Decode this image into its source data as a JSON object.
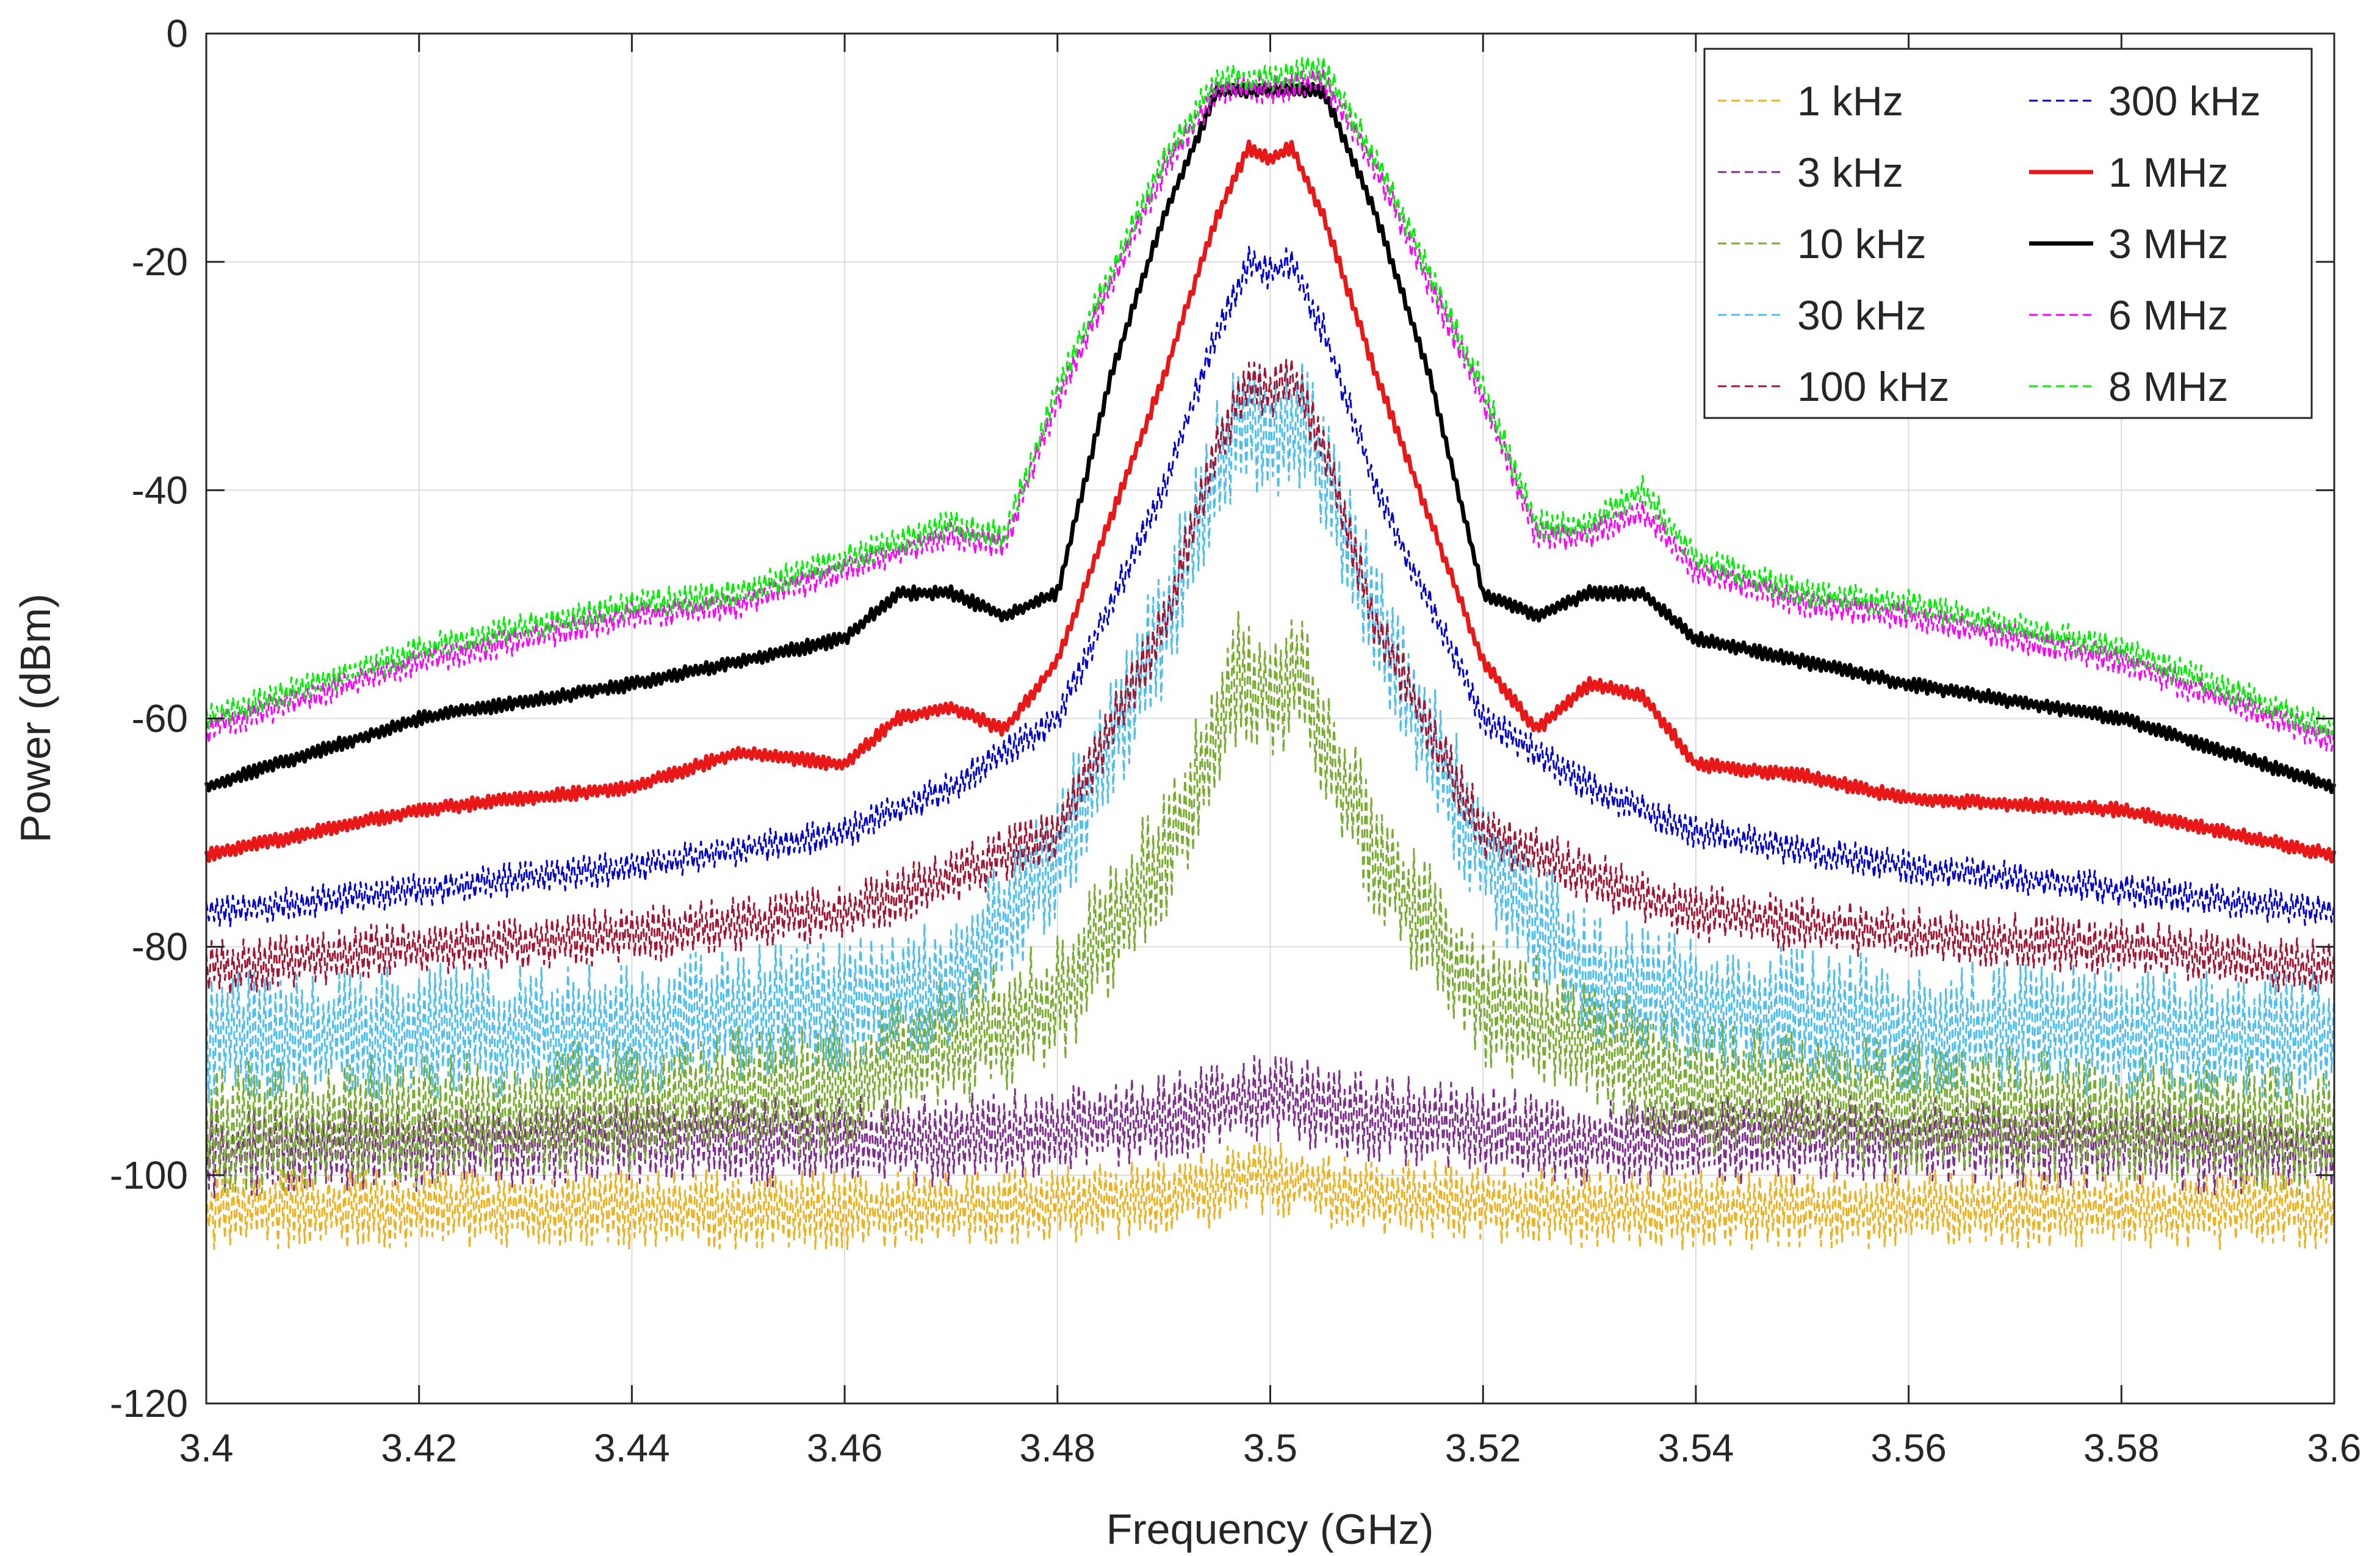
{
  "chart_data": {
    "type": "line",
    "xlabel": "Frequency (GHz)",
    "ylabel": "Power (dBm)",
    "xlim": [
      3.4,
      3.6
    ],
    "ylim": [
      -120,
      0
    ],
    "grid": true,
    "legend_position": "top-right",
    "x_ticks": [
      {
        "value": 3.4,
        "label": "3.4"
      },
      {
        "value": 3.42,
        "label": "3.42"
      },
      {
        "value": 3.44,
        "label": "3.44"
      },
      {
        "value": 3.46,
        "label": "3.46"
      },
      {
        "value": 3.48,
        "label": "3.48"
      },
      {
        "value": 3.5,
        "label": "3.5"
      },
      {
        "value": 3.52,
        "label": "3.52"
      },
      {
        "value": 3.54,
        "label": "3.54"
      },
      {
        "value": 3.56,
        "label": "3.56"
      },
      {
        "value": 3.58,
        "label": "3.58"
      },
      {
        "value": 3.6,
        "label": "3.6"
      }
    ],
    "y_ticks": [
      {
        "value": 0,
        "label": "0"
      },
      {
        "value": -20,
        "label": "-20"
      },
      {
        "value": -40,
        "label": "-40"
      },
      {
        "value": -60,
        "label": "-60"
      },
      {
        "value": -80,
        "label": "-80"
      },
      {
        "value": -100,
        "label": "-100"
      },
      {
        "value": -120,
        "label": "-120"
      }
    ],
    "series": [
      {
        "name": "1 kHz",
        "color": "#EDB120",
        "style": "dashed",
        "width": 3,
        "x": [
          3.4,
          3.44,
          3.47,
          3.49,
          3.5,
          3.51,
          3.53,
          3.56,
          3.6
        ],
        "y": [
          -103,
          -103,
          -103,
          -102,
          -100,
          -102,
          -103,
          -103,
          -103
        ],
        "ripple": 3.5
      },
      {
        "name": "3 kHz",
        "color": "#7E2F8E",
        "style": "dashed",
        "width": 3,
        "x": [
          3.4,
          3.44,
          3.47,
          3.49,
          3.5,
          3.51,
          3.53,
          3.56,
          3.6
        ],
        "y": [
          -98,
          -97,
          -97,
          -95,
          -93,
          -95,
          -97,
          -97,
          -98
        ],
        "ripple": 4
      },
      {
        "name": "10 kHz",
        "color": "#77AC30",
        "style": "dashed",
        "width": 3,
        "x": [
          3.4,
          3.44,
          3.46,
          3.48,
          3.49,
          3.495,
          3.497,
          3.5,
          3.503,
          3.505,
          3.51,
          3.52,
          3.54,
          3.56,
          3.6
        ],
        "y": [
          -96,
          -94,
          -92,
          -85,
          -72,
          -62,
          -56,
          -58,
          -56,
          -62,
          -72,
          -85,
          -92,
          -94,
          -96
        ],
        "ripple": 6
      },
      {
        "name": "30 kHz",
        "color": "#4DBEEE",
        "style": "dashed",
        "width": 3,
        "x": [
          3.4,
          3.44,
          3.46,
          3.47,
          3.48,
          3.49,
          3.495,
          3.497,
          3.5,
          3.503,
          3.505,
          3.51,
          3.52,
          3.53,
          3.54,
          3.56,
          3.6
        ],
        "y": [
          -88,
          -87,
          -85,
          -83,
          -72,
          -52,
          -38,
          -34,
          -36,
          -34,
          -38,
          -52,
          -72,
          -83,
          -85,
          -87,
          -88
        ],
        "ripple": 6
      },
      {
        "name": "100 kHz",
        "color": "#A2142F",
        "style": "dashed",
        "width": 3,
        "x": [
          3.4,
          3.42,
          3.44,
          3.46,
          3.47,
          3.48,
          3.49,
          3.495,
          3.498,
          3.5,
          3.502,
          3.505,
          3.51,
          3.52,
          3.53,
          3.54,
          3.56,
          3.58,
          3.6
        ],
        "y": [
          -82,
          -80,
          -79,
          -77,
          -74,
          -70,
          -52,
          -36,
          -30,
          -32,
          -30,
          -36,
          -52,
          -70,
          -74,
          -77,
          -79,
          -80,
          -82
        ],
        "ripple": 2.5
      },
      {
        "name": "300 kHz",
        "color": "#0000CC",
        "style": "dashed",
        "width": 3,
        "x": [
          3.4,
          3.42,
          3.44,
          3.46,
          3.47,
          3.48,
          3.49,
          3.495,
          3.498,
          3.5,
          3.502,
          3.505,
          3.51,
          3.52,
          3.53,
          3.54,
          3.56,
          3.58,
          3.6
        ],
        "y": [
          -77,
          -75,
          -73,
          -70,
          -66,
          -60,
          -40,
          -26,
          -20,
          -21,
          -20,
          -26,
          -40,
          -60,
          -66,
          -70,
          -73,
          -75,
          -77
        ],
        "ripple": 1.5
      },
      {
        "name": "1 MHz",
        "color": "#E81818",
        "style": "solid",
        "width": 7,
        "x": [
          3.4,
          3.42,
          3.44,
          3.45,
          3.46,
          3.465,
          3.47,
          3.475,
          3.48,
          3.49,
          3.495,
          3.498,
          3.5,
          3.502,
          3.505,
          3.51,
          3.52,
          3.525,
          3.53,
          3.535,
          3.54,
          3.55,
          3.56,
          3.58,
          3.6
        ],
        "y": [
          -72,
          -68,
          -66,
          -63,
          -64,
          -60,
          -59,
          -61,
          -55,
          -30,
          -16,
          -10,
          -11,
          -10,
          -16,
          -30,
          -55,
          -61,
          -57,
          -58,
          -64,
          -65,
          -67,
          -68,
          -72
        ],
        "ripple": 0.6
      },
      {
        "name": "3 MHz",
        "color": "#000000",
        "style": "solid",
        "width": 7,
        "x": [
          3.4,
          3.42,
          3.44,
          3.45,
          3.46,
          3.465,
          3.47,
          3.475,
          3.48,
          3.485,
          3.49,
          3.495,
          3.5,
          3.505,
          3.51,
          3.515,
          3.52,
          3.525,
          3.53,
          3.535,
          3.54,
          3.55,
          3.56,
          3.58,
          3.6
        ],
        "y": [
          -66,
          -60,
          -57,
          -55,
          -53,
          -49,
          -49,
          -51,
          -49,
          -30,
          -16,
          -5,
          -5,
          -5,
          -16,
          -30,
          -49,
          -51,
          -49,
          -49,
          -53,
          -55,
          -57,
          -60,
          -66
        ],
        "ripple": 0.6
      },
      {
        "name": "6 MHz",
        "color": "#FF00FF",
        "style": "dashed",
        "width": 3,
        "x": [
          3.4,
          3.42,
          3.44,
          3.45,
          3.46,
          3.47,
          3.475,
          3.48,
          3.485,
          3.49,
          3.495,
          3.5,
          3.505,
          3.51,
          3.515,
          3.52,
          3.525,
          3.53,
          3.535,
          3.54,
          3.55,
          3.56,
          3.58,
          3.6
        ],
        "y": [
          -61,
          -55,
          -51,
          -50,
          -47,
          -44,
          -45,
          -32,
          -22,
          -12,
          -5,
          -5,
          -4,
          -12,
          -22,
          -32,
          -44,
          -44,
          -42,
          -47,
          -50,
          -51,
          -55,
          -62
        ],
        "ripple": 1.3
      },
      {
        "name": "8 MHz",
        "color": "#00EE00",
        "style": "dashed",
        "width": 3,
        "x": [
          3.4,
          3.42,
          3.44,
          3.45,
          3.46,
          3.47,
          3.475,
          3.48,
          3.485,
          3.49,
          3.495,
          3.5,
          3.505,
          3.51,
          3.515,
          3.52,
          3.525,
          3.53,
          3.535,
          3.54,
          3.55,
          3.56,
          3.58,
          3.6
        ],
        "y": [
          -60,
          -54,
          -50,
          -49,
          -46,
          -43,
          -44,
          -31,
          -21,
          -11,
          -4,
          -4,
          -3,
          -11,
          -21,
          -31,
          -43,
          -43,
          -40,
          -46,
          -49,
          -50,
          -54,
          -61
        ],
        "ripple": 1.3
      }
    ]
  }
}
